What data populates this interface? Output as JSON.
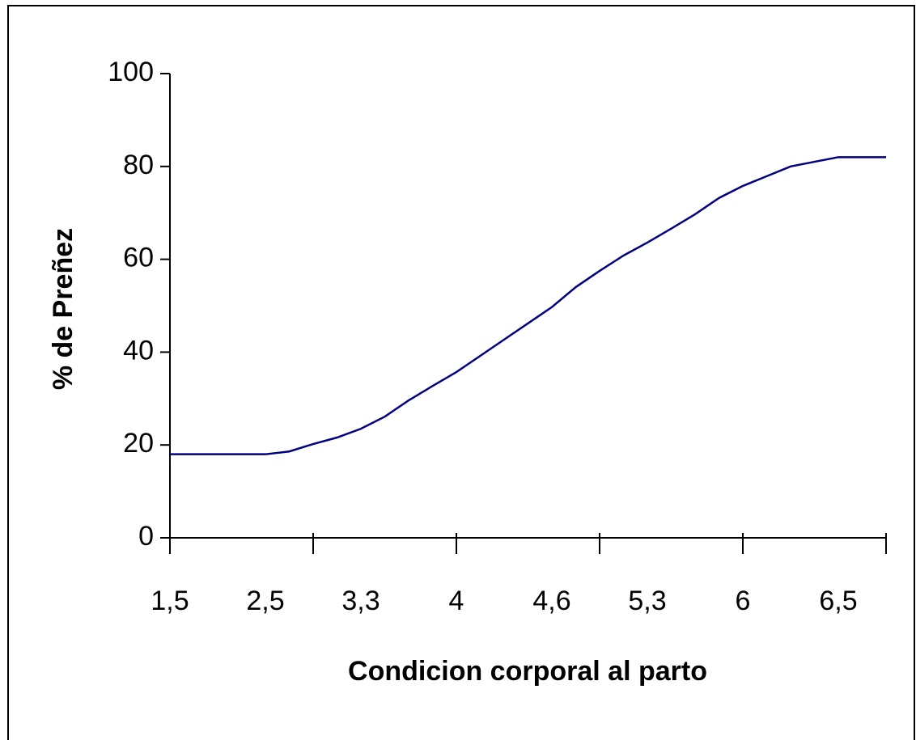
{
  "chart_data": {
    "type": "line",
    "xlabel": "Condicion corporal al parto",
    "ylabel": "% de Preñez",
    "categories": [
      "1,5",
      null,
      null,
      null,
      "2,5",
      null,
      null,
      null,
      "3,3",
      null,
      null,
      null,
      "4",
      null,
      null,
      null,
      "4,6",
      null,
      null,
      null,
      "5,3",
      null,
      null,
      null,
      "6",
      null,
      null,
      null,
      "6,5",
      null,
      null
    ],
    "values": [
      18,
      18,
      18,
      18,
      18,
      18.6,
      20.2,
      21.6,
      23.5,
      26.1,
      29.6,
      32.7,
      35.7,
      39.2,
      42.7,
      46.2,
      49.7,
      54,
      57.5,
      60.8,
      63.6,
      66.6,
      69.7,
      73.2,
      75.8,
      77.9,
      80,
      81,
      82,
      82,
      82
    ],
    "color": "#000080",
    "ylim": [
      0,
      100
    ],
    "yticks": [
      0,
      20,
      40,
      60,
      80,
      100
    ],
    "xtick_interval": 6
  }
}
